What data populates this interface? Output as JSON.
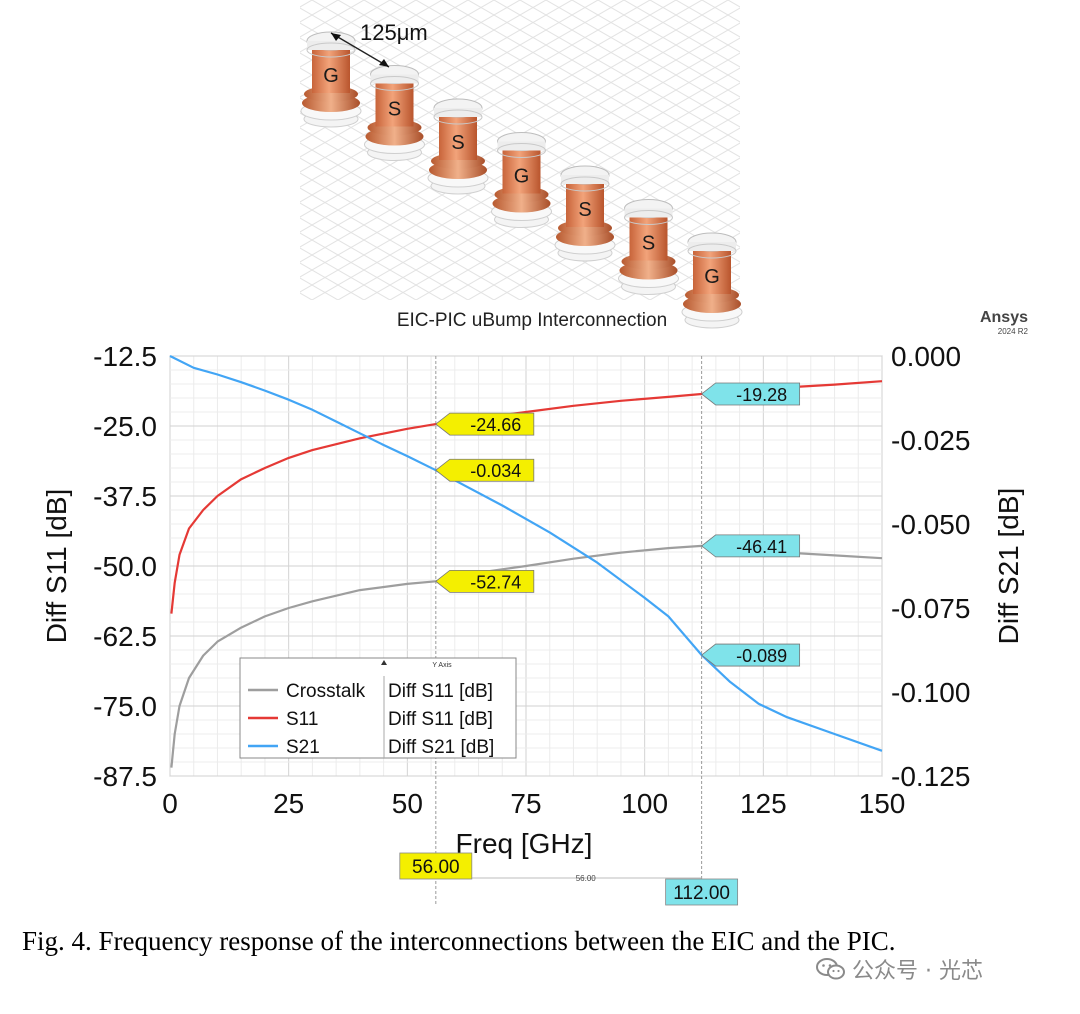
{
  "illustration": {
    "pitch_label": "125μm",
    "bumps": [
      "G",
      "S",
      "S",
      "G",
      "S",
      "S",
      "G"
    ]
  },
  "chart_data": {
    "type": "line",
    "title": "EIC-PIC uBump Interconnection",
    "brand": "Ansys",
    "brand_version": "2024 R2",
    "xlabel": "Freq [GHz]",
    "ylabel_left": "Diff S11 [dB]",
    "ylabel_right": "Diff S21 [dB]",
    "xlim": [
      0,
      150
    ],
    "ylim_left": [
      -87.5,
      -12.5
    ],
    "ylim_right": [
      -0.125,
      0.0
    ],
    "x_ticks": [
      0,
      25,
      50,
      75,
      100,
      125,
      150
    ],
    "x_tick_labels": [
      "0",
      "25",
      "50",
      "75",
      "100",
      "125",
      "150"
    ],
    "y_left_ticks": [
      -12.5,
      -25.0,
      -37.5,
      -50.0,
      -62.5,
      -75.0,
      -87.5
    ],
    "y_left_tick_labels": [
      "-12.5",
      "-25.0",
      "-37.5",
      "-50.0",
      "-62.5",
      "-75.0",
      "-87.5"
    ],
    "y_right_ticks": [
      0.0,
      -0.025,
      -0.05,
      -0.075,
      -0.1,
      -0.125
    ],
    "y_right_tick_labels": [
      "0.000",
      "-0.025",
      "-0.050",
      "-0.075",
      "-0.100",
      "-0.125"
    ],
    "grid": true,
    "legend": {
      "placement": "lower-left",
      "header": "Y Axis",
      "entries": [
        {
          "name": "Crosstalk",
          "axis": "Diff S11 [dB]",
          "color": "#9e9e9e"
        },
        {
          "name": "S11",
          "axis": "Diff S11 [dB]",
          "color": "#e53935"
        },
        {
          "name": "S21",
          "axis": "Diff S21 [dB]",
          "color": "#42a5f5"
        }
      ]
    },
    "series": [
      {
        "name": "Crosstalk",
        "axis": "left",
        "color": "#9e9e9e",
        "x": [
          0.3,
          1,
          2,
          4,
          7,
          10,
          15,
          20,
          25,
          30,
          40,
          50,
          56,
          65,
          75,
          85,
          95,
          105,
          112,
          120,
          130,
          140,
          150
        ],
        "y": [
          -86,
          -80,
          -75,
          -70,
          -66,
          -63.5,
          -61,
          -59,
          -57.5,
          -56.3,
          -54.3,
          -53.2,
          -52.74,
          -51.2,
          -50,
          -48.7,
          -47.6,
          -46.8,
          -46.41,
          -46.8,
          -47.6,
          -48.1,
          -48.6
        ]
      },
      {
        "name": "S11",
        "axis": "left",
        "color": "#e53935",
        "x": [
          0.3,
          1,
          2,
          4,
          7,
          10,
          15,
          20,
          25,
          30,
          40,
          50,
          56,
          65,
          75,
          85,
          95,
          105,
          112,
          120,
          130,
          140,
          150
        ],
        "y": [
          -58.5,
          -53,
          -48,
          -43.3,
          -40,
          -37.5,
          -34.5,
          -32.5,
          -30.7,
          -29.3,
          -27.2,
          -25.5,
          -24.66,
          -23.6,
          -22.5,
          -21.4,
          -20.5,
          -19.8,
          -19.28,
          -18.7,
          -18.1,
          -17.6,
          -17.0
        ]
      },
      {
        "name": "S21",
        "axis": "right",
        "color": "#42a5f5",
        "x": [
          0,
          5,
          10,
          15,
          20,
          25,
          30,
          35,
          40,
          45,
          50,
          56,
          60,
          70,
          80,
          90,
          100,
          105,
          112,
          118,
          124,
          130,
          140,
          150
        ],
        "y": [
          0.0,
          -0.0035,
          -0.0055,
          -0.0078,
          -0.0103,
          -0.013,
          -0.016,
          -0.0195,
          -0.023,
          -0.0265,
          -0.0298,
          -0.034,
          -0.037,
          -0.0445,
          -0.0525,
          -0.0615,
          -0.072,
          -0.0775,
          -0.089,
          -0.097,
          -0.1035,
          -0.1075,
          -0.1125,
          -0.1175
        ]
      }
    ],
    "markers": [
      {
        "x": 56,
        "label": "56.00",
        "color": "#f4ef00"
      },
      {
        "x": 112,
        "label": "112.00",
        "color": "#7fe3ea"
      }
    ],
    "delta_label": "56.00",
    "annotations": [
      {
        "series": "S11",
        "x": 56,
        "y": -24.66,
        "text": "-24.66",
        "color": "#f4ef00"
      },
      {
        "series": "S21",
        "x": 56,
        "y": -0.034,
        "text": "-0.034",
        "color": "#f4ef00"
      },
      {
        "series": "Crosstalk",
        "x": 56,
        "y": -52.74,
        "text": "-52.74",
        "color": "#f4ef00"
      },
      {
        "series": "S11",
        "x": 112,
        "y": -19.28,
        "text": "-19.28",
        "color": "#7fe3ea"
      },
      {
        "series": "Crosstalk",
        "x": 112,
        "y": -46.41,
        "text": "-46.41",
        "color": "#7fe3ea"
      },
      {
        "series": "S21",
        "x": 112,
        "y": -0.089,
        "text": "-0.089",
        "color": "#7fe3ea"
      }
    ]
  },
  "caption": "Fig. 4. Frequency response of the interconnections between the EIC and the PIC.",
  "watermark": "公众号 · 光芯"
}
